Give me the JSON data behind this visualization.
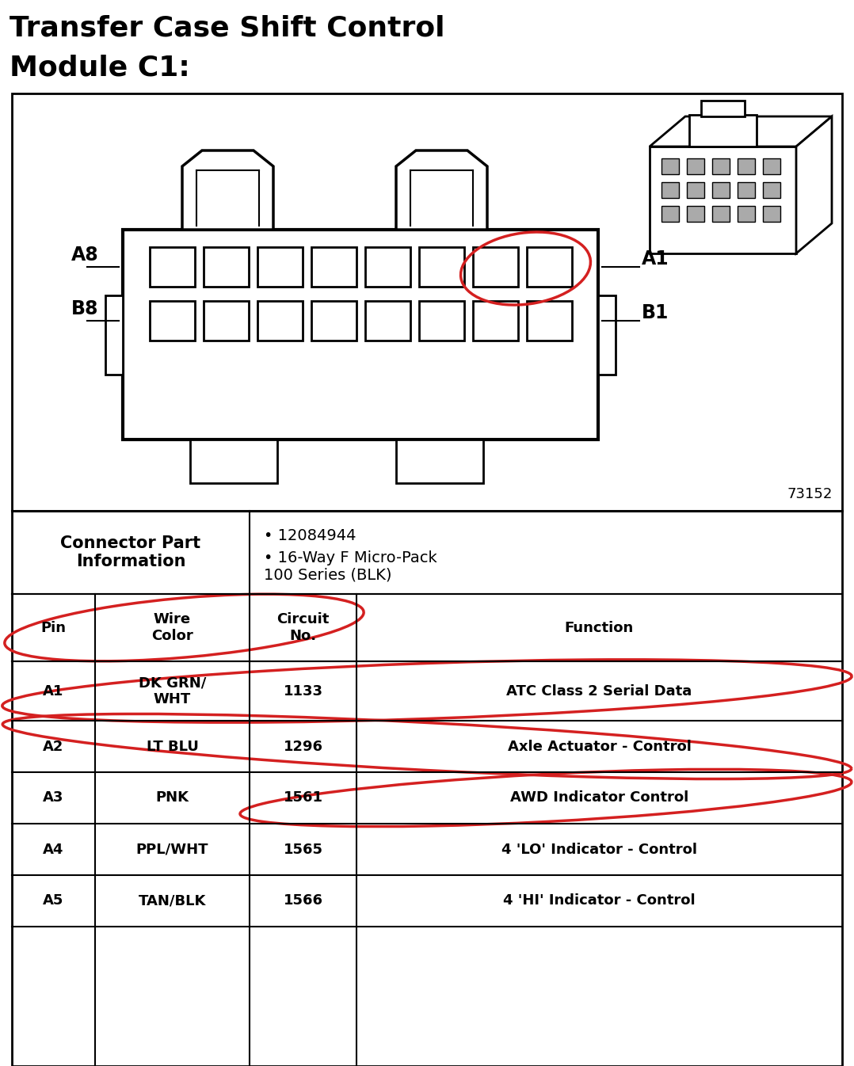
{
  "title_line1": "Transfer Case Shift Control",
  "title_line2": "Module C1:",
  "bg_color": "#ffffff",
  "diagram_ref": "73152",
  "connector_info_label": "Connector Part\nInformation",
  "connector_info_bullet1": "12084944",
  "connector_info_bullet2": "16-Way F Micro-Pack\n100 Series (BLK)",
  "table_headers": [
    "Pin",
    "Wire\nColor",
    "Circuit\nNo.",
    "Function"
  ],
  "table_rows": [
    [
      "A1",
      "DK GRN/\nWHT",
      "1133",
      "ATC Class 2 Serial Data"
    ],
    [
      "A2",
      "LT BLU",
      "1296",
      "Axle Actuator - Control"
    ],
    [
      "A3",
      "PNK",
      "1561",
      "AWD Indicator Control"
    ],
    [
      "A4",
      "PPL/WHT",
      "1565",
      "4 'LO' Indicator - Control"
    ],
    [
      "A5",
      "TAN/BLK",
      "1566",
      "4 'HI' Indicator - Control"
    ]
  ],
  "red_color": "#d42020",
  "black": "#000000",
  "white": "#ffffff",
  "lightgray": "#cccccc"
}
